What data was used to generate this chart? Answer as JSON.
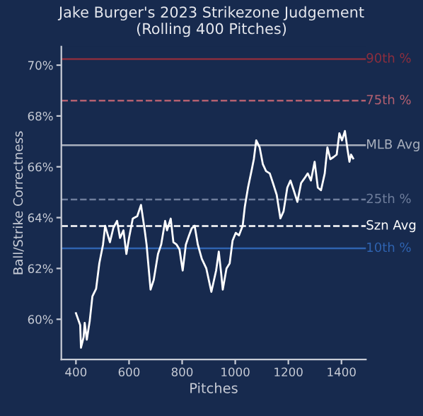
{
  "chart_data": {
    "type": "line",
    "title": "Jake Burger's 2023 Strikezone Judgement\n(Rolling 400 Pitches)",
    "xlabel": "Pitches",
    "ylabel": "Ball/Strike Correctness",
    "series": [
      {
        "color": "#ffffff",
        "x": [
          400,
          416,
          419,
          429,
          433,
          441,
          452,
          462,
          476,
          488,
          502,
          510,
          528,
          541,
          555,
          566,
          579,
          590,
          600,
          614,
          631,
          645,
          659,
          666,
          681,
          693,
          709,
          721,
          736,
          743,
          757,
          767,
          779,
          790,
          802,
          814,
          826,
          836,
          847,
          859,
          874,
          891,
          910,
          928,
          938,
          947,
          953,
          967,
          979,
          990,
          1002,
          1014,
          1028,
          1036,
          1048,
          1061,
          1070,
          1079,
          1092,
          1104,
          1116,
          1130,
          1142,
          1156,
          1170,
          1182,
          1196,
          1208,
          1220,
          1234,
          1248,
          1261,
          1273,
          1285,
          1299,
          1311,
          1323,
          1337,
          1347,
          1358,
          1371,
          1382,
          1392,
          1402,
          1413,
          1423,
          1430,
          1436,
          1444
        ],
        "values": [
          60.24,
          59.77,
          58.88,
          59.3,
          59.86,
          59.2,
          59.94,
          60.9,
          61.2,
          62.2,
          62.94,
          63.68,
          63.03,
          63.6,
          63.87,
          63.2,
          63.5,
          62.57,
          63.2,
          63.96,
          64.06,
          64.5,
          63.5,
          62.94,
          61.17,
          61.55,
          62.57,
          62.94,
          63.87,
          63.5,
          63.96,
          63.03,
          62.94,
          62.75,
          61.92,
          62.94,
          63.3,
          63.58,
          63.68,
          62.94,
          62.38,
          62.0,
          61.08,
          61.92,
          62.66,
          61.8,
          61.17,
          62.0,
          62.2,
          63.1,
          63.4,
          63.3,
          63.68,
          64.43,
          65.18,
          65.83,
          66.3,
          67.04,
          66.76,
          66.1,
          65.83,
          65.74,
          65.36,
          64.9,
          63.97,
          64.25,
          65.18,
          65.46,
          65.08,
          64.62,
          65.36,
          65.55,
          65.74,
          65.46,
          66.2,
          65.18,
          65.08,
          65.74,
          66.76,
          66.3,
          66.39,
          66.48,
          67.32,
          67.04,
          67.41,
          66.67,
          66.2,
          66.48,
          66.33
        ]
      }
    ],
    "xlim": [
      345,
      1492
    ],
    "xticks": [
      400,
      600,
      800,
      1000,
      1200,
      1400
    ],
    "ylim": [
      58.42,
      70.73
    ],
    "yticks": [
      {
        "value": 60,
        "label": "60%"
      },
      {
        "value": 62,
        "label": "62%"
      },
      {
        "value": 64,
        "label": "64%"
      },
      {
        "value": 66,
        "label": "66%"
      },
      {
        "value": 68,
        "label": "68%"
      },
      {
        "value": 70,
        "label": "70%"
      }
    ],
    "ref_lines": [
      {
        "axis": "y",
        "value": 70.24,
        "label": "90th %",
        "color": "#8b2e3e",
        "line_style": "solid"
      },
      {
        "axis": "y",
        "value": 68.6,
        "label": "75th %",
        "color": "#b36070",
        "line_style": "dashed"
      },
      {
        "axis": "y",
        "value": 66.85,
        "label": "MLB Avg",
        "color": "#a9b0bd",
        "line_style": "solid"
      },
      {
        "axis": "y",
        "value": 64.71,
        "label": "25th %",
        "color": "#6f7e9c",
        "line_style": "dashed"
      },
      {
        "axis": "y",
        "value": 63.67,
        "label": "Szn Avg",
        "color": "#ffffff",
        "line_style": "dashed"
      },
      {
        "axis": "y",
        "value": 62.79,
        "label": "10th %",
        "color": "#2f63b0",
        "line_style": "solid"
      }
    ],
    "grid": false,
    "legend": false,
    "line_style": "solid",
    "marker": "none"
  }
}
